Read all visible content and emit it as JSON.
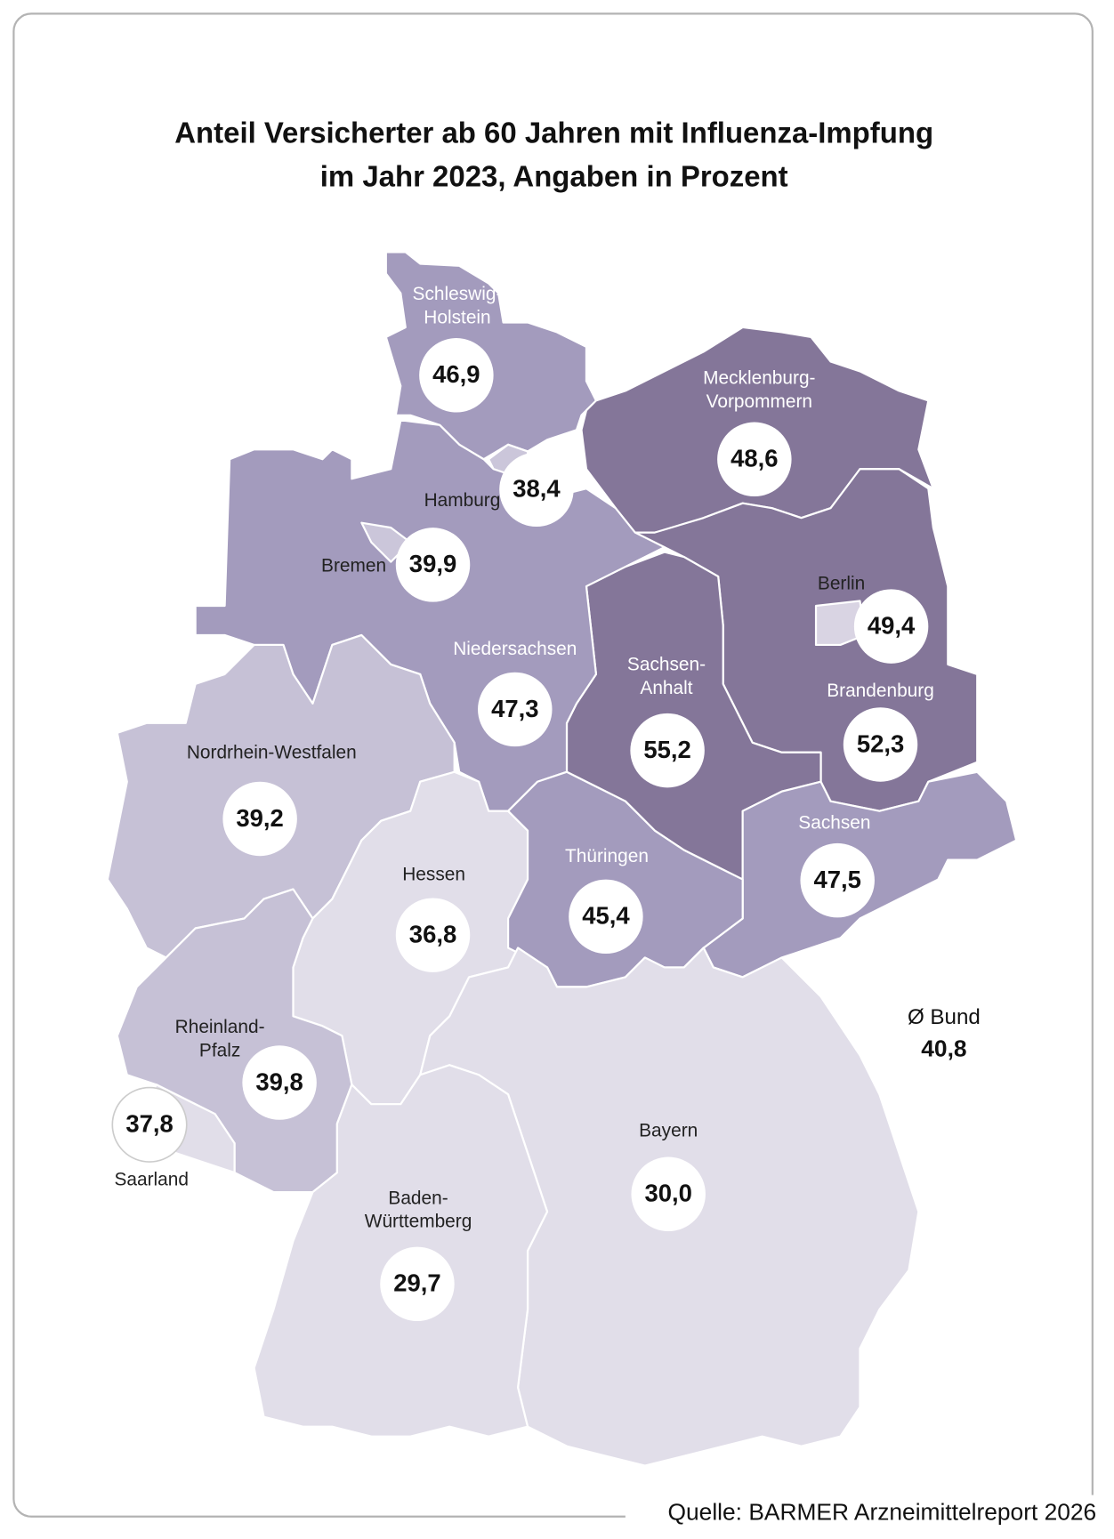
{
  "header": {
    "title_lines": [
      "Anteil Versicherter ab 60 Jahren mit Influenza-Impfung",
      "im Jahr 2023, Angaben in Prozent"
    ]
  },
  "regions": [
    {
      "name_lines": [
        "Schleswig-",
        "Holstein"
      ],
      "value": "46,9",
      "color": "#a39bbd"
    },
    {
      "name_lines": [
        "Hamburg"
      ],
      "value": "38,4",
      "color": "#cbc6da"
    },
    {
      "name_lines": [
        "Mecklenburg-",
        "Vorpommern"
      ],
      "value": "48,6",
      "color": "#847699"
    },
    {
      "name_lines": [
        "Brandenburg"
      ],
      "value": "52,3",
      "color": "#847699"
    },
    {
      "name_lines": [
        "Berlin"
      ],
      "value": "49,4",
      "color": "#d9d4e3"
    },
    {
      "name_lines": [
        "Sachsen-",
        "Anhalt"
      ],
      "value": "55,2",
      "color": "#847699"
    },
    {
      "name_lines": [
        "Sachsen"
      ],
      "value": "47,5",
      "color": "#a39bbd"
    },
    {
      "name_lines": [
        "Niedersachsen"
      ],
      "value": "47,3",
      "color": "#a39bbd"
    },
    {
      "name_lines": [
        "Bremen"
      ],
      "value": "39,9",
      "color": "#cbc6da"
    },
    {
      "name_lines": [
        "Nordrhein-Westfalen"
      ],
      "value": "39,2",
      "color": "#c6c1d6"
    },
    {
      "name_lines": [
        "Hessen"
      ],
      "value": "36,8",
      "color": "#e1dee9"
    },
    {
      "name_lines": [
        "Thüringen"
      ],
      "value": "45,4",
      "color": "#a39bbd"
    },
    {
      "name_lines": [
        "Rheinland-",
        "Pfalz"
      ],
      "value": "39,8",
      "color": "#c6c1d6"
    },
    {
      "name_lines": [
        "Saarland"
      ],
      "value": "37,8",
      "color": "#e1dee9"
    },
    {
      "name_lines": [
        "Bayern"
      ],
      "value": "30,0",
      "color": "#e1dee9"
    },
    {
      "name_lines": [
        "Baden-",
        "Württemberg"
      ],
      "value": "29,7",
      "color": "#e1dee9"
    }
  ],
  "average": {
    "label": "Ø Bund",
    "value": "40,8"
  },
  "source": "Quelle: BARMER Arzneimittelreport 2026"
}
